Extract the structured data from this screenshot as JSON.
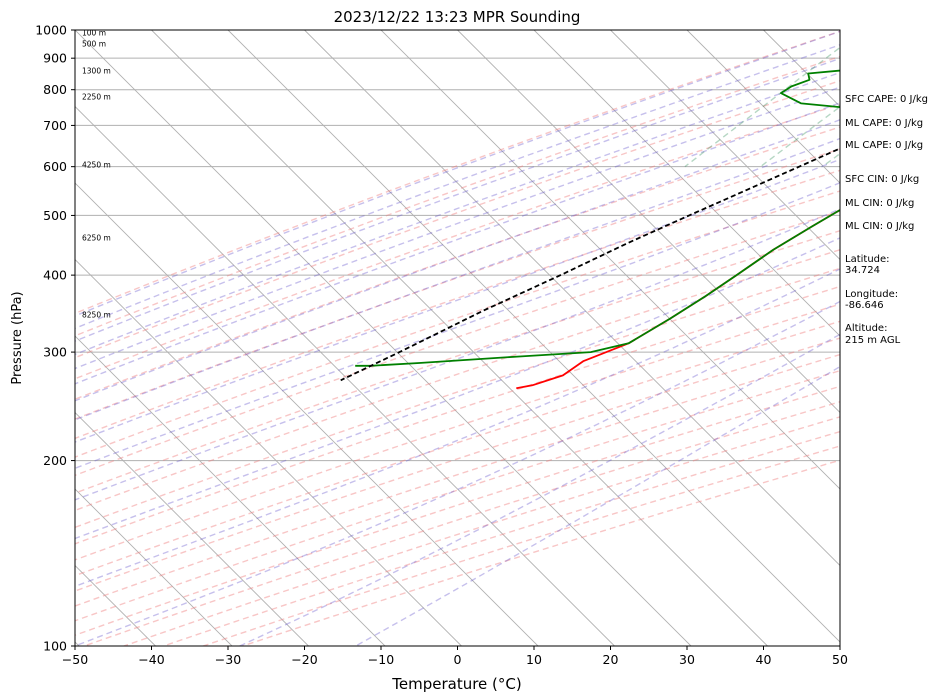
{
  "chart_data": {
    "type": "line",
    "title": "2023/12/22 13:23 MPR Sounding",
    "xlabel": "Temperature (°C)",
    "ylabel": "Pressure (hPa)",
    "xlim": [
      -50,
      50
    ],
    "ylim": [
      1000,
      100
    ],
    "yscale": "log",
    "grid": true,
    "x_ticks": [
      "−50",
      "−40",
      "−30",
      "−20",
      "−10",
      "0",
      "10",
      "20",
      "30",
      "40",
      "50"
    ],
    "y_ticks": [
      {
        "p": 1000,
        "label": "1000"
      },
      {
        "p": 900,
        "label": "900"
      },
      {
        "p": 800,
        "label": "800"
      },
      {
        "p": 700,
        "label": "700"
      },
      {
        "p": 600,
        "label": "600"
      },
      {
        "p": 500,
        "label": "500"
      },
      {
        "p": 400,
        "label": "400"
      },
      {
        "p": 300,
        "label": "300"
      },
      {
        "p": 200,
        "label": "200"
      },
      {
        "p": 100,
        "label": "100"
      }
    ],
    "height_labels": [
      {
        "p": 990,
        "text": "100 m"
      },
      {
        "p": 950,
        "text": "500 m"
      },
      {
        "p": 860,
        "text": "1300 m"
      },
      {
        "p": 780,
        "text": "2250 m"
      },
      {
        "p": 605,
        "text": "4250 m"
      },
      {
        "p": 460,
        "text": "6250 m"
      },
      {
        "p": 345,
        "text": "8250 m"
      }
    ],
    "series": [
      {
        "color": "#ff0000",
        "points": [
          [
            1000,
            4.5
          ],
          [
            995,
            7.5
          ],
          [
            985,
            9.5
          ],
          [
            970,
            10.0
          ],
          [
            950,
            10.5
          ],
          [
            920,
            11.0
          ],
          [
            895,
            10.8
          ],
          [
            870,
            10.0
          ],
          [
            850,
            9.0
          ],
          [
            825,
            8.2
          ],
          [
            800,
            7.5
          ],
          [
            760,
            7.0
          ],
          [
            730,
            5.0
          ],
          [
            700,
            3.0
          ],
          [
            670,
            1.0
          ],
          [
            640,
            -0.5
          ],
          [
            600,
            -2.6
          ],
          [
            570,
            -4.5
          ],
          [
            540,
            -5.6
          ],
          [
            510,
            -7.0
          ],
          [
            480,
            -8.5
          ],
          [
            440,
            -10.5
          ],
          [
            400,
            -12.0
          ],
          [
            370,
            -13.3
          ],
          [
            340,
            -15.0
          ],
          [
            310,
            -17.2
          ],
          [
            290,
            -20.8
          ],
          [
            275,
            -21.6
          ],
          [
            265,
            -24.3
          ],
          [
            262,
            -26.0
          ]
        ]
      },
      {
        "color": "#008000",
        "points": [
          [
            1000,
            -2.0
          ],
          [
            990,
            -4.0
          ],
          [
            970,
            -7.5
          ],
          [
            950,
            -8.5
          ],
          [
            930,
            -12.0
          ],
          [
            910,
            -16.0
          ],
          [
            890,
            -20.0
          ],
          [
            870,
            -21.0
          ],
          [
            850,
            -29.0
          ],
          [
            830,
            -28.0
          ],
          [
            810,
            -29.5
          ],
          [
            790,
            -30.0
          ],
          [
            760,
            -26.0
          ],
          [
            730,
            -10.0
          ],
          [
            710,
            -4.5
          ],
          [
            690,
            0.5
          ],
          [
            650,
            -1.5
          ],
          [
            600,
            -2.6
          ],
          [
            570,
            -4.5
          ],
          [
            540,
            -5.6
          ],
          [
            510,
            -7.0
          ],
          [
            480,
            -8.5
          ],
          [
            440,
            -10.5
          ],
          [
            400,
            -12.0
          ],
          [
            370,
            -13.3
          ],
          [
            340,
            -15.0
          ],
          [
            310,
            -17.2
          ],
          [
            300,
            -21.0
          ],
          [
            295,
            -30.0
          ],
          [
            288,
            -42.0
          ],
          [
            285,
            -48.0
          ],
          [
            285,
            -50.0
          ]
        ]
      },
      {
        "color": "#000000",
        "dash": "dashed",
        "points": [
          [
            1000,
            4.5
          ],
          [
            950,
            0.0
          ],
          [
            900,
            -1.5
          ],
          [
            850,
            -3.5
          ],
          [
            800,
            -6.0
          ],
          [
            750,
            -8.5
          ],
          [
            700,
            -11.0
          ],
          [
            650,
            -14.5
          ],
          [
            600,
            -18.0
          ],
          [
            550,
            -21.8
          ],
          [
            500,
            -26.0
          ],
          [
            450,
            -30.5
          ],
          [
            400,
            -35.0
          ],
          [
            350,
            -40.5
          ],
          [
            300,
            -46.0
          ],
          [
            270,
            -50.0
          ]
        ]
      }
    ],
    "annotations": [
      "SFC CAPE: 0 J/kg",
      "ML CAPE: 0 J/kg",
      "ML CAPE: 0 J/kg",
      "SFC CIN: 0 J/kg",
      "ML CIN: 0 J/kg",
      "ML CIN: 0 J/kg",
      "Latitude:",
      "34.724",
      "Longitude:",
      "-86.646",
      "Altitude:",
      "215 m AGL"
    ]
  }
}
